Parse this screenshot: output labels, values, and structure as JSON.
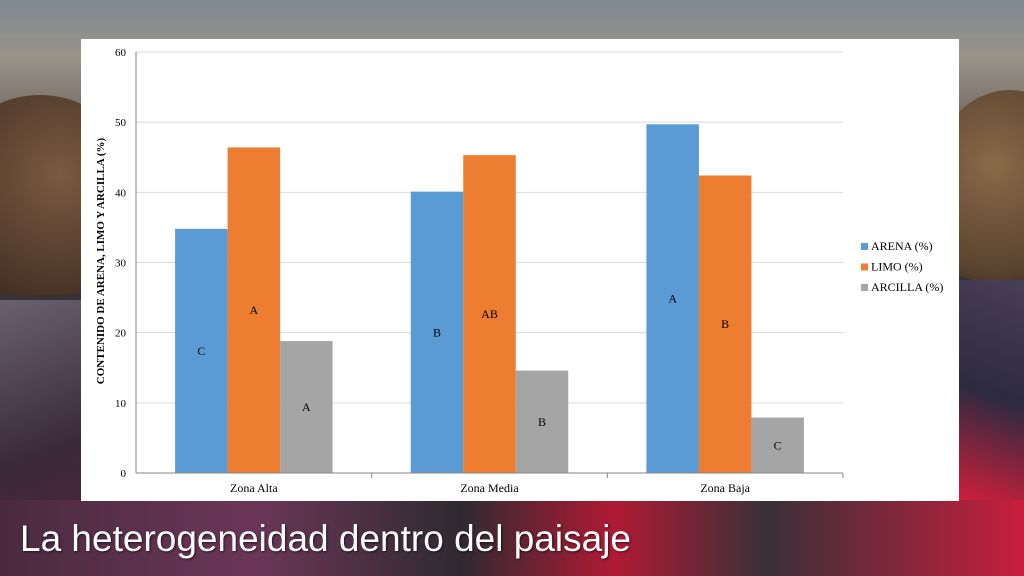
{
  "slide": {
    "caption": "La heterogeneidad dentro del paisaje"
  },
  "chart_data": {
    "type": "bar",
    "title": "",
    "xlabel": "",
    "ylabel": "CONTENIDO DE ARENA, LIMO Y ARCILLA (%)",
    "ylim": [
      0,
      60
    ],
    "yticks": [
      0,
      10,
      20,
      30,
      40,
      50,
      60
    ],
    "grid": true,
    "legend_position": "right",
    "categories": [
      "Zona Alta",
      "Zona Media",
      "Zona Baja"
    ],
    "series": [
      {
        "name": "ARENA (%)",
        "color": "#5b9bd5",
        "values": [
          34.8,
          40.1,
          49.7
        ],
        "labels": [
          "C",
          "B",
          "A"
        ]
      },
      {
        "name": "LIMO (%)",
        "color": "#ed7d31",
        "values": [
          46.4,
          45.3,
          42.4
        ],
        "labels": [
          "A",
          "AB",
          "B"
        ]
      },
      {
        "name": "ARCILLA (%)",
        "color": "#a5a5a5",
        "values": [
          18.8,
          14.6,
          7.9
        ],
        "labels": [
          "A",
          "B",
          "C"
        ]
      }
    ]
  }
}
